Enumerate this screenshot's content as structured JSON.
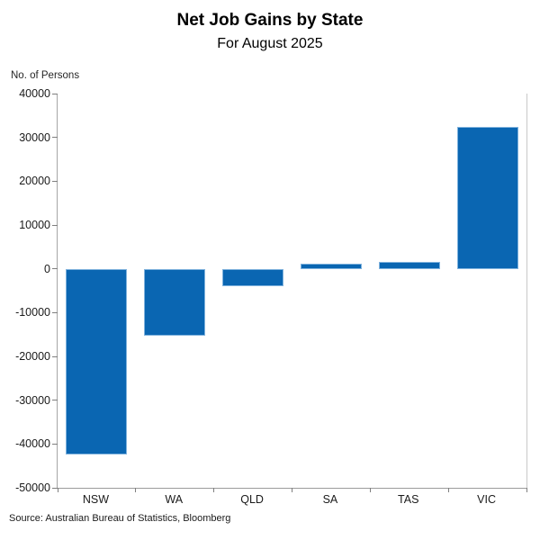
{
  "chart_data": {
    "type": "bar",
    "title": "Net Job Gains by State",
    "subtitle": "For August 2025",
    "ylabel": "No. of Persons",
    "source": "Source: Australian Bureau of Statistics, Bloomberg",
    "categories": [
      "NSW",
      "WA",
      "QLD",
      "SA",
      "TAS",
      "VIC"
    ],
    "values": [
      -42400,
      -15300,
      -3900,
      1100,
      1500,
      32300
    ],
    "ylim": [
      -50000,
      40000
    ],
    "ytick_step": 10000,
    "ytick_labels": [
      "40000",
      "30000",
      "20000",
      "10000",
      "0",
      "-10000",
      "-20000",
      "-30000",
      "-40000",
      "-50000"
    ],
    "grid": false,
    "legend": "none",
    "bar_color": "#0a66b2",
    "bar_edge_color": "#7fb2dd",
    "axis_color": "#a6a6a6",
    "tick_color": "#7f7f7f",
    "text_color": "#1a1a1a"
  }
}
